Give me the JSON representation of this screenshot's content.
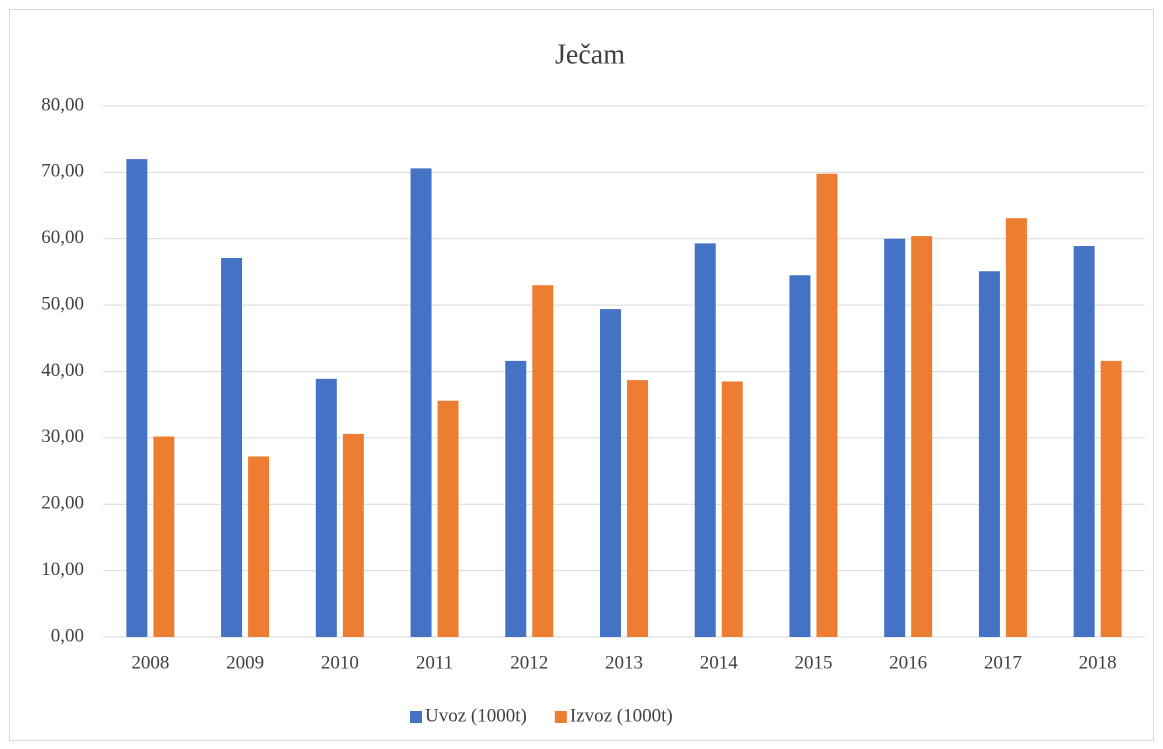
{
  "chart_data": {
    "type": "bar",
    "title": "Ječam",
    "categories": [
      "2008",
      "2009",
      "2010",
      "2011",
      "2012",
      "2013",
      "2014",
      "2015",
      "2016",
      "2017",
      "2018"
    ],
    "series": [
      {
        "name": "Uvoz (1000t)",
        "color": "#4472c4",
        "values": [
          72.0,
          57.1,
          38.9,
          70.6,
          41.6,
          49.4,
          59.3,
          54.5,
          60.0,
          55.1,
          58.9
        ]
      },
      {
        "name": "Izvoz (1000t)",
        "color": "#ed7d31",
        "values": [
          30.2,
          27.2,
          30.6,
          35.6,
          53.0,
          38.7,
          38.5,
          69.8,
          60.4,
          63.1,
          41.6
        ]
      }
    ],
    "ylim": [
      0,
      80
    ],
    "yticks": [
      {
        "value": 0,
        "label": "0,00"
      },
      {
        "value": 10,
        "label": "10,00"
      },
      {
        "value": 20,
        "label": "20,00"
      },
      {
        "value": 30,
        "label": "30,00"
      },
      {
        "value": 40,
        "label": "40,00"
      },
      {
        "value": 50,
        "label": "50,00"
      },
      {
        "value": 60,
        "label": "60,00"
      },
      {
        "value": 70,
        "label": "70,00"
      },
      {
        "value": 80,
        "label": "80,00"
      }
    ],
    "grid": true,
    "legend": "bottom"
  }
}
